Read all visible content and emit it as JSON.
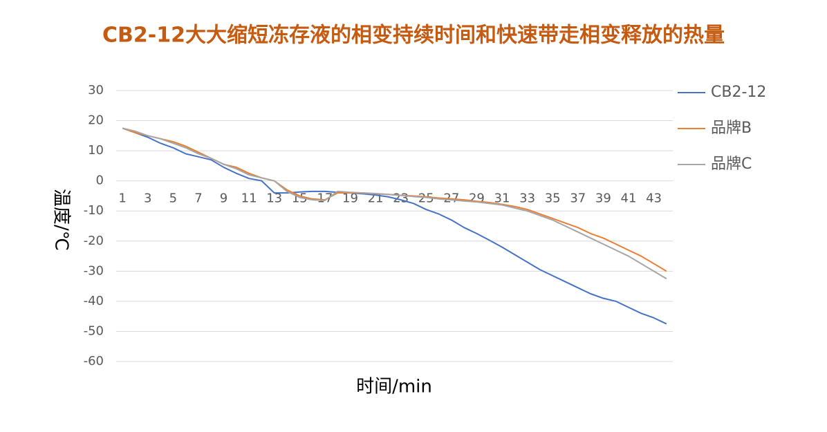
{
  "chart_data": {
    "type": "line",
    "title": "CB2-12大大缩短冻存液的相变持续时间和快速带走相变释放的热量",
    "x_label": "时间/min",
    "y_label": "温度/℃",
    "categories": [
      "1",
      null,
      "3",
      null,
      "5",
      null,
      "7",
      null,
      "9",
      null,
      "11",
      null,
      "13",
      null,
      "15",
      null,
      "17",
      null,
      "19",
      null,
      "21",
      null,
      "23",
      null,
      "25",
      null,
      "27",
      null,
      "29",
      null,
      "31",
      null,
      "33",
      null,
      "35",
      null,
      "37",
      null,
      "39",
      null,
      "41",
      null,
      "43",
      null
    ],
    "series": [
      {
        "name": "CB2-12",
        "color": "#4472c4",
        "values": [
          17.5,
          16,
          14.5,
          12.5,
          11,
          9,
          8,
          7,
          4.5,
          2.5,
          0.8,
          0,
          -4,
          -4,
          -3.7,
          -3.5,
          -3.5,
          -3.8,
          -4,
          -4.3,
          -4.7,
          -5.3,
          -6.3,
          -7.5,
          -9.5,
          -11,
          -13,
          -15.5,
          -17.5,
          -19.7,
          -22,
          -24.5,
          -27,
          -29.5,
          -31.5,
          -33.5,
          -35.5,
          -37.5,
          -39,
          -40,
          -42,
          -44,
          -45.5,
          -47.5
        ]
      },
      {
        "name": "品牌B",
        "color": "#ed7d31",
        "values": [
          17.5,
          16,
          15,
          14,
          13,
          11.5,
          9.5,
          7.5,
          5.5,
          4.5,
          2.5,
          1,
          0,
          -3,
          -5,
          -6,
          -6.3,
          -4,
          -4,
          -4,
          -4.3,
          -4.5,
          -4.8,
          -5,
          -5.3,
          -5.7,
          -6,
          -6.3,
          -6.8,
          -7.2,
          -7.8,
          -8.5,
          -9.5,
          -11,
          -12.5,
          -14,
          -15.5,
          -17.5,
          -19,
          -21,
          -23,
          -25,
          -27.5,
          -30
        ]
      },
      {
        "name": "品牌C",
        "color": "#a5a5a5",
        "values": [
          17.5,
          16.5,
          15,
          14,
          12.5,
          11,
          9,
          7.5,
          5.5,
          4,
          2,
          1,
          0,
          -3.5,
          -5.5,
          -6.3,
          -6.5,
          -3.5,
          -3.8,
          -4,
          -4.2,
          -4.5,
          -4.8,
          -5.2,
          -5.5,
          -6,
          -6.3,
          -6.7,
          -7,
          -7.5,
          -8,
          -9,
          -10,
          -11.5,
          -13,
          -15,
          -17,
          -19,
          -21,
          -23,
          -25,
          -27.5,
          -30,
          -32.5
        ]
      }
    ],
    "ylim": [
      -60,
      30
    ],
    "yticks": [
      30,
      20,
      10,
      0,
      -10,
      -20,
      -30,
      -40,
      -50,
      -60
    ],
    "grid": true,
    "legend": "right"
  }
}
